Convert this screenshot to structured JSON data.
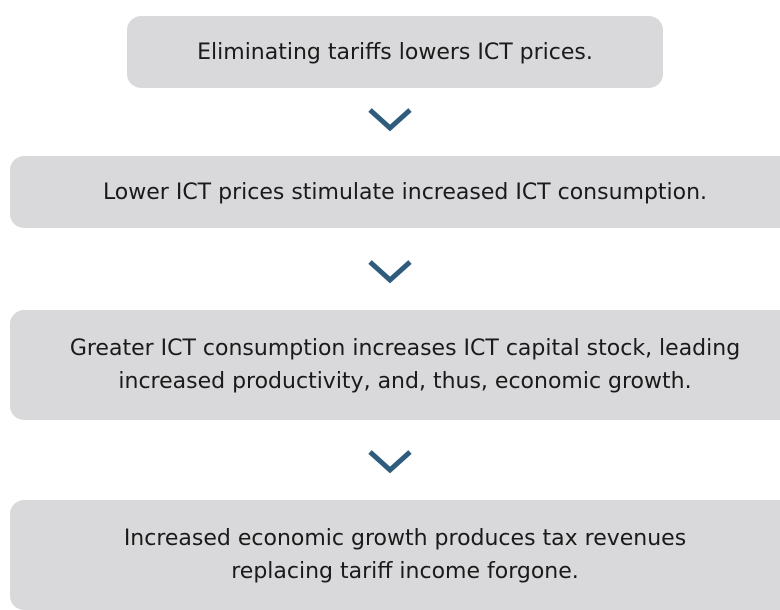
{
  "nodes": [
    {
      "lines": [
        "Eliminating tariffs lowers ICT prices."
      ]
    },
    {
      "lines": [
        "Lower ICT prices stimulate increased ICT consumption."
      ]
    },
    {
      "lines": [
        "Greater ICT consumption increases ICT capital stock, leading",
        "increased productivity, and, thus, economic growth."
      ]
    },
    {
      "lines": [
        "Increased economic growth produces tax revenues",
        "replacing tariff income forgone."
      ]
    }
  ]
}
